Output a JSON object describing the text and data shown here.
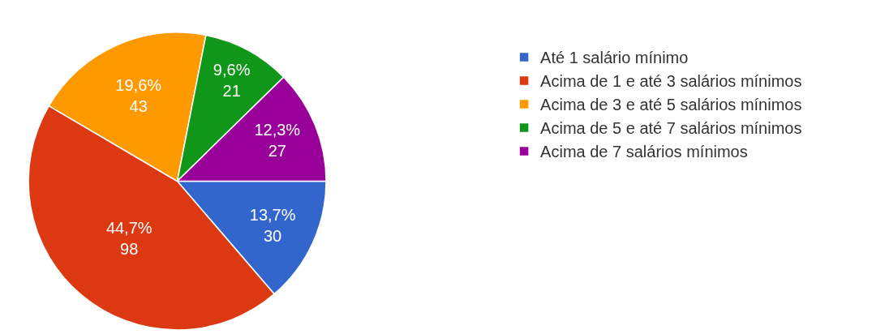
{
  "chart_data": {
    "type": "pie",
    "categories": [
      "Até 1 salário mínimo",
      "Acima de 1 e até 3 salários mínimos",
      "Acima de 3 e até 5 salários mínimos",
      "Acima de 5 e até 7 salários mínimos",
      "Acima de 7 salários mínimos"
    ],
    "values": [
      30,
      98,
      43,
      21,
      27
    ],
    "colors": [
      "#3366cc",
      "#dc3912",
      "#ff9900",
      "#109618",
      "#990099"
    ],
    "value_labels": [
      "13,7%\n30",
      "44,7%\n98",
      "19,6%\n43",
      "9,6%\n21",
      "12,3%\n27"
    ],
    "legend": "top right"
  }
}
